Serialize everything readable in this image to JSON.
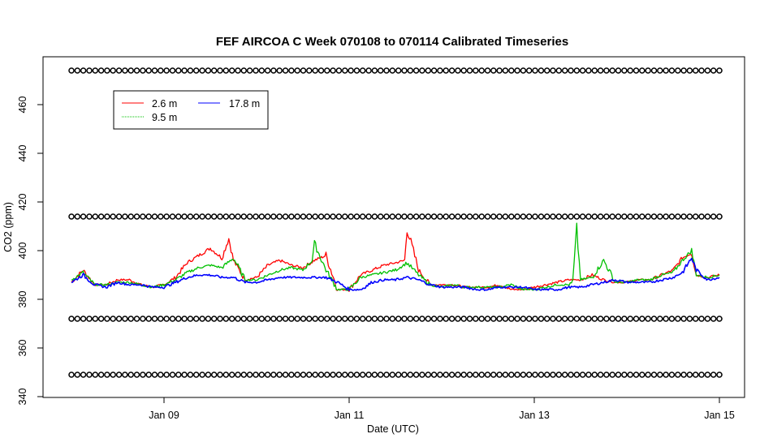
{
  "chart_data": {
    "type": "line",
    "title": "FEF AIRCOA C  Week 070108 to 070114  Calibrated Timeseries",
    "xlabel": "Date (UTC)",
    "ylabel": "CO2 (ppm)",
    "xlim": [
      "2007-01-08",
      "2007-01-15"
    ],
    "ylim": [
      340,
      475
    ],
    "x_ticks": [
      "Jan 09",
      "Jan 11",
      "Jan 13",
      "Jan 15"
    ],
    "x_tick_dates": [
      "2007-01-09",
      "2007-01-11",
      "2007-01-13",
      "2007-01-15"
    ],
    "y_ticks": [
      340,
      360,
      380,
      400,
      420,
      440,
      460
    ],
    "grid": false,
    "legend_position": "top-left",
    "series": [
      {
        "name": "2.6 m",
        "color": "#ff0000",
        "x": [
          "2007-01-08 00:00",
          "2007-01-08 03:00",
          "2007-01-08 06:00",
          "2007-01-08 09:00",
          "2007-01-08 12:00",
          "2007-01-08 15:00",
          "2007-01-08 18:00",
          "2007-01-08 21:00",
          "2007-01-09 00:00",
          "2007-01-09 03:00",
          "2007-01-09 06:00",
          "2007-01-09 09:00",
          "2007-01-09 12:00",
          "2007-01-09 15:00",
          "2007-01-09 16:48",
          "2007-01-09 18:00",
          "2007-01-09 21:00",
          "2007-01-10 00:00",
          "2007-01-10 03:00",
          "2007-01-10 06:00",
          "2007-01-10 09:00",
          "2007-01-10 12:00",
          "2007-01-10 15:00",
          "2007-01-10 18:00",
          "2007-01-10 21:00",
          "2007-01-11 00:00",
          "2007-01-11 03:00",
          "2007-01-11 06:00",
          "2007-01-11 09:00",
          "2007-01-11 12:00",
          "2007-01-11 14:24",
          "2007-01-11 15:00",
          "2007-01-11 18:00",
          "2007-01-11 21:00",
          "2007-01-12 00:00",
          "2007-01-12 03:00",
          "2007-01-12 06:00",
          "2007-01-12 09:00",
          "2007-01-12 12:00",
          "2007-01-12 15:00",
          "2007-01-12 18:00",
          "2007-01-12 21:00",
          "2007-01-13 00:00",
          "2007-01-13 03:00",
          "2007-01-13 06:00",
          "2007-01-13 09:00",
          "2007-01-13 12:00",
          "2007-01-13 15:00",
          "2007-01-13 18:00",
          "2007-01-13 21:00",
          "2007-01-14 00:00",
          "2007-01-14 03:00",
          "2007-01-14 06:00",
          "2007-01-14 09:00",
          "2007-01-14 12:00",
          "2007-01-14 14:24",
          "2007-01-14 16:48",
          "2007-01-14 18:00",
          "2007-01-14 21:00",
          "2007-01-15 00:00"
        ],
        "values": [
          387,
          392,
          386,
          386,
          388,
          388,
          386,
          385,
          386,
          389,
          395,
          398,
          401,
          397,
          405,
          396,
          388,
          389,
          394,
          396,
          394,
          393,
          396,
          398,
          384,
          384,
          390,
          392,
          394,
          395,
          396,
          409,
          392,
          386,
          386,
          386,
          385,
          385,
          385,
          386,
          384,
          384,
          385,
          386,
          387,
          388,
          388,
          390,
          388,
          387,
          387,
          388,
          388,
          390,
          392,
          397,
          399,
          390,
          389,
          390
        ]
      },
      {
        "name": "9.5 m",
        "color": "#00c000",
        "x": [
          "2007-01-08 00:00",
          "2007-01-08 03:00",
          "2007-01-08 06:00",
          "2007-01-08 09:00",
          "2007-01-08 12:00",
          "2007-01-08 15:00",
          "2007-01-08 18:00",
          "2007-01-08 21:00",
          "2007-01-09 00:00",
          "2007-01-09 03:00",
          "2007-01-09 06:00",
          "2007-01-09 09:00",
          "2007-01-09 12:00",
          "2007-01-09 15:00",
          "2007-01-09 18:00",
          "2007-01-09 21:00",
          "2007-01-10 00:00",
          "2007-01-10 03:00",
          "2007-01-10 06:00",
          "2007-01-10 09:00",
          "2007-01-10 12:00",
          "2007-01-10 14:24",
          "2007-01-10 15:00",
          "2007-01-10 18:00",
          "2007-01-10 21:00",
          "2007-01-11 00:00",
          "2007-01-11 03:00",
          "2007-01-11 06:00",
          "2007-01-11 09:00",
          "2007-01-11 12:00",
          "2007-01-11 15:00",
          "2007-01-11 18:00",
          "2007-01-11 21:00",
          "2007-01-12 00:00",
          "2007-01-12 03:00",
          "2007-01-12 06:00",
          "2007-01-12 09:00",
          "2007-01-12 12:00",
          "2007-01-12 15:00",
          "2007-01-12 18:00",
          "2007-01-12 21:00",
          "2007-01-13 00:00",
          "2007-01-13 03:00",
          "2007-01-13 06:00",
          "2007-01-13 09:00",
          "2007-01-13 10:00",
          "2007-01-13 11:00",
          "2007-01-13 12:00",
          "2007-01-13 15:00",
          "2007-01-13 18:00",
          "2007-01-13 21:00",
          "2007-01-14 00:00",
          "2007-01-14 03:00",
          "2007-01-14 06:00",
          "2007-01-14 09:00",
          "2007-01-14 12:00",
          "2007-01-14 14:24",
          "2007-01-14 16:48",
          "2007-01-14 18:00",
          "2007-01-14 21:00",
          "2007-01-15 00:00"
        ],
        "values": [
          388,
          391,
          386,
          386,
          387,
          387,
          386,
          385,
          386,
          388,
          391,
          393,
          394,
          393,
          397,
          388,
          388,
          390,
          392,
          393,
          392,
          396,
          403,
          392,
          384,
          384,
          389,
          390,
          391,
          392,
          395,
          390,
          386,
          385,
          386,
          385,
          385,
          385,
          385,
          386,
          384,
          384,
          385,
          386,
          386,
          387,
          409,
          388,
          389,
          396,
          387,
          387,
          388,
          388,
          390,
          391,
          396,
          400,
          390,
          389,
          390
        ]
      },
      {
        "name": "17.8 m",
        "color": "#0000ff",
        "x": [
          "2007-01-08 00:00",
          "2007-01-08 03:00",
          "2007-01-08 06:00",
          "2007-01-08 09:00",
          "2007-01-08 12:00",
          "2007-01-08 15:00",
          "2007-01-08 18:00",
          "2007-01-08 21:00",
          "2007-01-09 00:00",
          "2007-01-09 03:00",
          "2007-01-09 06:00",
          "2007-01-09 09:00",
          "2007-01-09 12:00",
          "2007-01-09 15:00",
          "2007-01-09 18:00",
          "2007-01-09 21:00",
          "2007-01-10 00:00",
          "2007-01-10 03:00",
          "2007-01-10 06:00",
          "2007-01-10 09:00",
          "2007-01-10 12:00",
          "2007-01-10 15:00",
          "2007-01-10 18:00",
          "2007-01-10 21:00",
          "2007-01-11 00:00",
          "2007-01-11 03:00",
          "2007-01-11 06:00",
          "2007-01-11 09:00",
          "2007-01-11 12:00",
          "2007-01-11 15:00",
          "2007-01-11 18:00",
          "2007-01-11 21:00",
          "2007-01-12 00:00",
          "2007-01-12 03:00",
          "2007-01-12 06:00",
          "2007-01-12 09:00",
          "2007-01-12 12:00",
          "2007-01-12 15:00",
          "2007-01-12 18:00",
          "2007-01-12 21:00",
          "2007-01-13 00:00",
          "2007-01-13 03:00",
          "2007-01-13 06:00",
          "2007-01-13 09:00",
          "2007-01-13 12:00",
          "2007-01-13 15:00",
          "2007-01-13 18:00",
          "2007-01-13 21:00",
          "2007-01-14 00:00",
          "2007-01-14 03:00",
          "2007-01-14 06:00",
          "2007-01-14 09:00",
          "2007-01-14 12:00",
          "2007-01-14 14:24",
          "2007-01-14 16:48",
          "2007-01-14 18:00",
          "2007-01-14 21:00",
          "2007-01-15 00:00"
        ],
        "values": [
          387,
          390,
          386,
          385,
          387,
          386,
          386,
          385,
          385,
          387,
          389,
          390,
          390,
          389,
          389,
          387,
          387,
          388,
          389,
          389,
          389,
          389,
          389,
          387,
          384,
          384,
          387,
          388,
          388,
          389,
          388,
          386,
          385,
          385,
          385,
          384,
          384,
          385,
          385,
          385,
          384,
          384,
          384,
          385,
          385,
          386,
          387,
          388,
          387,
          387,
          387,
          388,
          389,
          391,
          397,
          392,
          388,
          389
        ]
      },
      {
        "name": "",
        "color": "#000000",
        "marker": "open-circle",
        "x": [
          "2007-01-08 00:00",
          "2007-01-15 00:00"
        ],
        "values": [
          474,
          474
        ]
      },
      {
        "name": "",
        "color": "#000000",
        "marker": "open-circle",
        "x": [
          "2007-01-08 00:00",
          "2007-01-15 00:00"
        ],
        "values": [
          414,
          414
        ]
      },
      {
        "name": "",
        "color": "#000000",
        "marker": "open-circle",
        "x": [
          "2007-01-08 00:00",
          "2007-01-15 00:00"
        ],
        "values": [
          372,
          372
        ]
      },
      {
        "name": "",
        "color": "#000000",
        "marker": "open-circle",
        "x": [
          "2007-01-08 00:00",
          "2007-01-15 00:00"
        ],
        "values": [
          349,
          349
        ]
      }
    ],
    "legend": [
      {
        "label": "2.6 m",
        "color": "#ff0000"
      },
      {
        "label": "9.5 m",
        "color": "#00c000"
      },
      {
        "label": "17.8 m",
        "color": "#0000ff"
      }
    ]
  }
}
